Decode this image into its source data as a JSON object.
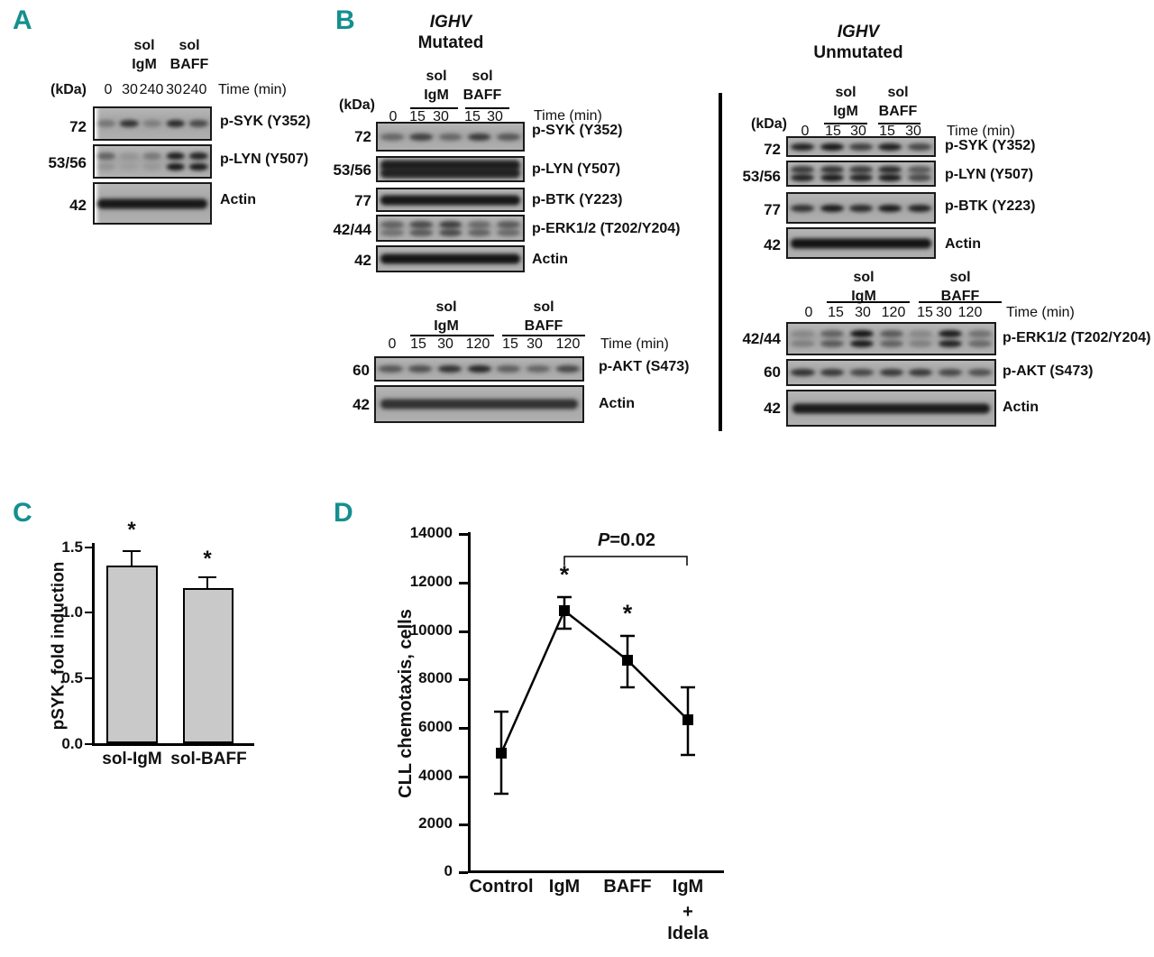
{
  "figure": {
    "accent_color": "#148f8f",
    "bar_fill": "#c9c9c9"
  },
  "panelA": {
    "label": "A",
    "kda_header": "(kDa)",
    "time_label": "Time (min)",
    "groups": [
      {
        "line1": "sol",
        "line2": "IgM"
      },
      {
        "line1": "sol",
        "line2": "BAFF"
      }
    ],
    "time_points": [
      "0",
      "30",
      "240",
      "30",
      "240"
    ],
    "rows": [
      {
        "kda": "72",
        "antibody": "p-SYK (Y352)"
      },
      {
        "kda": "53/56",
        "antibody": "p-LYN (Y507)"
      },
      {
        "kda": "42",
        "antibody": "Actin"
      }
    ]
  },
  "panelB": {
    "label": "B",
    "mutated": {
      "title_gene": "IGHV",
      "title_status": "Mutated",
      "top": {
        "kda_header": "(kDa)",
        "time_label": "Time (min)",
        "groups": [
          {
            "line1": "sol",
            "line2": "IgM"
          },
          {
            "line1": "sol",
            "line2": "BAFF"
          }
        ],
        "time_points": [
          "0",
          "15",
          "30",
          "15",
          "30"
        ],
        "rows": [
          {
            "kda": "72",
            "antibody": "p-SYK (Y352)"
          },
          {
            "kda": "53/56",
            "antibody": "p-LYN (Y507)"
          },
          {
            "kda": "77",
            "antibody": "p-BTK (Y223)"
          },
          {
            "kda": "42/44",
            "antibody": "p-ERK1/2 (T202/Y204)"
          },
          {
            "kda": "42",
            "antibody": "Actin"
          }
        ]
      },
      "bottom": {
        "time_label": "Time (min)",
        "groups": [
          {
            "line1": "sol",
            "line2": "IgM"
          },
          {
            "line1": "sol",
            "line2": "BAFF"
          }
        ],
        "time_points": [
          "0",
          "15",
          "30",
          "120",
          "15",
          "30",
          "120"
        ],
        "rows": [
          {
            "kda": "60",
            "antibody": "p-AKT (S473)"
          },
          {
            "kda": "42",
            "antibody": "Actin"
          }
        ]
      }
    },
    "unmutated": {
      "title_gene": "IGHV",
      "title_status": "Unmutated",
      "top": {
        "kda_header": "(kDa)",
        "time_label": "Time (min)",
        "groups": [
          {
            "line1": "sol",
            "line2": "IgM"
          },
          {
            "line1": "sol",
            "line2": "BAFF"
          }
        ],
        "time_points": [
          "0",
          "15",
          "30",
          "15",
          "30"
        ],
        "rows": [
          {
            "kda": "72",
            "antibody": "p-SYK (Y352)"
          },
          {
            "kda": "53/56",
            "antibody": "p-LYN (Y507)"
          },
          {
            "kda": "77",
            "antibody": "p-BTK (Y223)"
          },
          {
            "kda": "42",
            "antibody": "Actin"
          }
        ]
      },
      "bottom": {
        "time_label": "Time (min)",
        "groups": [
          {
            "line1": "sol",
            "line2": "IgM"
          },
          {
            "line1": "sol",
            "line2": "BAFF"
          }
        ],
        "time_points": [
          "0",
          "15",
          "30",
          "120",
          "15",
          "30",
          "120"
        ],
        "rows": [
          {
            "kda": "42/44",
            "antibody": "p-ERK1/2 (T202/Y204)"
          },
          {
            "kda": "60",
            "antibody": "p-AKT (S473)"
          },
          {
            "kda": "42",
            "antibody": "Actin"
          }
        ]
      }
    }
  },
  "panelC": {
    "label": "C"
  },
  "panelD": {
    "label": "D"
  },
  "chart_data": [
    {
      "panel": "C",
      "type": "bar",
      "categories": [
        "sol-IgM",
        "sol-BAFF"
      ],
      "values": [
        1.38,
        1.2
      ],
      "errors": [
        0.09,
        0.07
      ],
      "significance": [
        "*",
        "*"
      ],
      "ylabel": "pSYK, fold induction",
      "ylim": [
        0,
        1.5
      ],
      "yticks": [
        0,
        0.5,
        1,
        1.5
      ],
      "ytick_labels": [
        "0.0",
        "0.5",
        "1.0",
        "1.5"
      ],
      "grid": false,
      "legend": "none"
    },
    {
      "panel": "D",
      "type": "line",
      "categories": [
        "Control",
        "IgM",
        "BAFF",
        "IgM + Idela"
      ],
      "values": [
        4950,
        10800,
        8750,
        6300
      ],
      "errors_upper": [
        1700,
        600,
        1050,
        1400
      ],
      "errors_lower": [
        1700,
        650,
        1050,
        1450
      ],
      "significance": [
        "",
        "*",
        "*",
        ""
      ],
      "p_annotation": {
        "label": "P",
        "value": "=0.02",
        "between": [
          "IgM",
          "IgM + Idela"
        ]
      },
      "ylabel": "CLL chemotaxis, cells",
      "ylim": [
        0,
        14000
      ],
      "yticks": [
        0,
        2000,
        4000,
        6000,
        8000,
        10000,
        12000,
        14000
      ],
      "ytick_labels": [
        "0",
        "2000",
        "4000",
        "6000",
        "8000",
        "10000",
        "12000",
        "14000"
      ],
      "xtick_display_lines": [
        [
          "Control"
        ],
        [
          "IgM"
        ],
        [
          "BAFF"
        ],
        [
          "IgM",
          "+",
          "Idela"
        ]
      ],
      "marker": "square",
      "line_color": "#000000",
      "grid": false,
      "legend": "none"
    }
  ]
}
